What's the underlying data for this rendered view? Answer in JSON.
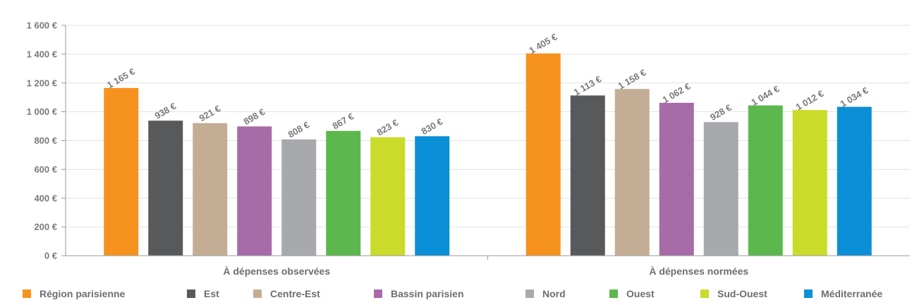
{
  "chart_data": {
    "type": "bar",
    "categories": [
      "À dépenses observées",
      "À dépenses normées"
    ],
    "series": [
      {
        "name": "Région parisienne",
        "color": "#f6921e",
        "values": [
          1165,
          1405
        ],
        "labels": [
          "1 165 €",
          "1 405 €"
        ]
      },
      {
        "name": "Est",
        "color": "#58595b",
        "values": [
          938,
          1113
        ],
        "labels": [
          "938 €",
          "1 113 €"
        ]
      },
      {
        "name": "Centre-Est",
        "color": "#c4ad95",
        "values": [
          921,
          1158
        ],
        "labels": [
          "921 €",
          "1 158 €"
        ]
      },
      {
        "name": "Bassin parisien",
        "color": "#a76ba8",
        "values": [
          898,
          1062
        ],
        "labels": [
          "898 €",
          "1 062 €"
        ]
      },
      {
        "name": "Nord",
        "color": "#a7a9ac",
        "values": [
          808,
          928
        ],
        "labels": [
          "808 €",
          "928 €"
        ]
      },
      {
        "name": "Ouest",
        "color": "#5cb84d",
        "values": [
          867,
          1044
        ],
        "labels": [
          "867 €",
          "1 044 €"
        ]
      },
      {
        "name": "Sud-Ouest",
        "color": "#cbdb2a",
        "values": [
          823,
          1012
        ],
        "labels": [
          "823 €",
          "1 012 €"
        ]
      },
      {
        "name": "Méditerranée",
        "color": "#0b8fd6",
        "values": [
          830,
          1034
        ],
        "labels": [
          "830 €",
          "1 034 €"
        ]
      }
    ],
    "yticks": [
      {
        "value": 0,
        "label": "0 €"
      },
      {
        "value": 200,
        "label": "200 €"
      },
      {
        "value": 400,
        "label": "400 €"
      },
      {
        "value": 600,
        "label": "600 €"
      },
      {
        "value": 800,
        "label": "800 €"
      },
      {
        "value": 1000,
        "label": "1 000 €"
      },
      {
        "value": 1200,
        "label": "1 200 €"
      },
      {
        "value": 1400,
        "label": "1 400 €"
      },
      {
        "value": 1600,
        "label": "1 600 €"
      }
    ],
    "ylim": [
      0,
      1600
    ],
    "grid": true,
    "legend_position": "bottom",
    "title": "",
    "xlabel": "",
    "ylabel": ""
  }
}
